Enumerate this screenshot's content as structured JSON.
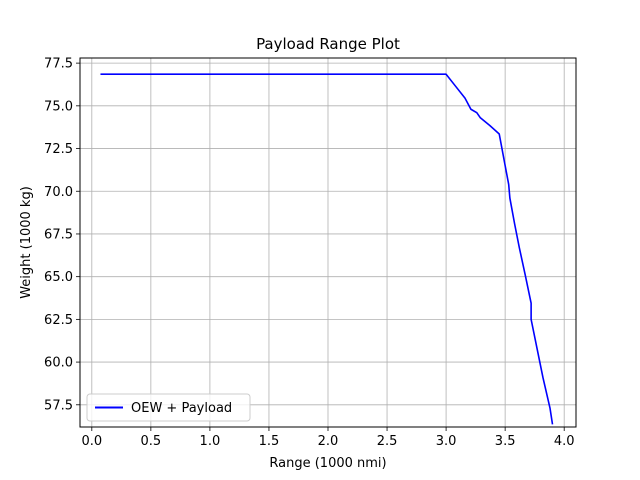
{
  "chart_data": {
    "type": "line",
    "title": "Payload Range Plot",
    "xlabel": "Range (1000 nmi)",
    "ylabel": "Weight (1000 kg)",
    "xlim": [
      -0.1,
      4.1
    ],
    "ylim": [
      56.2,
      77.8
    ],
    "xticks": [
      0.0,
      0.5,
      1.0,
      1.5,
      2.0,
      2.5,
      3.0,
      3.5,
      4.0
    ],
    "xtick_labels": [
      "0.0",
      "0.5",
      "1.0",
      "1.5",
      "2.0",
      "2.5",
      "3.0",
      "3.5",
      "4.0"
    ],
    "yticks": [
      57.5,
      60.0,
      62.5,
      65.0,
      67.5,
      70.0,
      72.5,
      75.0,
      77.5
    ],
    "ytick_labels": [
      "57.5",
      "60.0",
      "62.5",
      "65.0",
      "67.5",
      "70.0",
      "72.5",
      "75.0",
      "77.5"
    ],
    "grid": true,
    "legend_position": "lower-left",
    "series": [
      {
        "name": "OEW + Payload",
        "color": "#0000ff",
        "x": [
          0.08,
          3.0,
          3.08,
          3.16,
          3.21,
          3.26,
          3.29,
          3.37,
          3.45,
          3.5,
          3.53,
          3.54,
          3.58,
          3.62,
          3.67,
          3.72,
          3.72,
          3.77,
          3.82,
          3.88,
          3.9
        ],
        "y": [
          76.85,
          76.85,
          76.15,
          75.45,
          74.8,
          74.6,
          74.3,
          73.85,
          73.35,
          71.5,
          70.4,
          69.6,
          68.1,
          66.7,
          65.1,
          63.45,
          62.5,
          60.8,
          59.1,
          57.3,
          56.4
        ]
      }
    ]
  }
}
